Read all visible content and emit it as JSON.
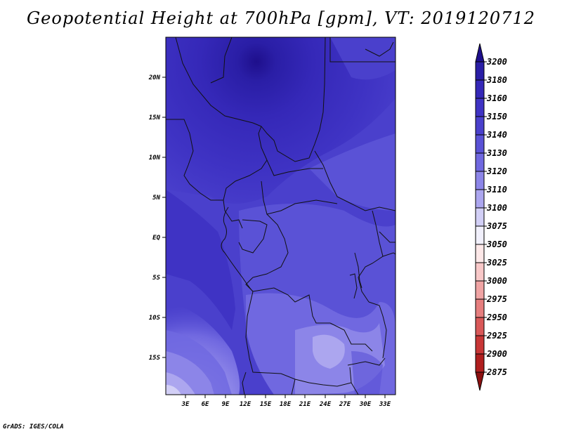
{
  "title": "Geopotential Height at 700hPa [gpm], VT: 2019120712",
  "credit": "GrADS: IGES/COLA",
  "map": {
    "lat_labels": [
      "20N",
      "15N",
      "10N",
      "5N",
      "EQ",
      "5S",
      "10S",
      "15S"
    ],
    "lon_labels": [
      "3E",
      "6E",
      "9E",
      "12E",
      "15E",
      "18E",
      "21E",
      "24E",
      "27E",
      "30E",
      "33E"
    ]
  },
  "colorbar": {
    "levels": [
      "3200",
      "3180",
      "3160",
      "3150",
      "3140",
      "3130",
      "3120",
      "3110",
      "3100",
      "3075",
      "3050",
      "3025",
      "3000",
      "2975",
      "2950",
      "2925",
      "2900",
      "2875"
    ],
    "colors": [
      "#1e0f8c",
      "#2a1ea6",
      "#3528b8",
      "#3f33c4",
      "#4a40cc",
      "#5a52d6",
      "#7068e0",
      "#8c85e8",
      "#aca6ef",
      "#d2cff6",
      "#f1f0fc",
      "#fde8e8",
      "#f8c8c8",
      "#f0a4a4",
      "#e67e7e",
      "#d95858",
      "#c83636",
      "#b01e1e",
      "#8c1010"
    ]
  }
}
